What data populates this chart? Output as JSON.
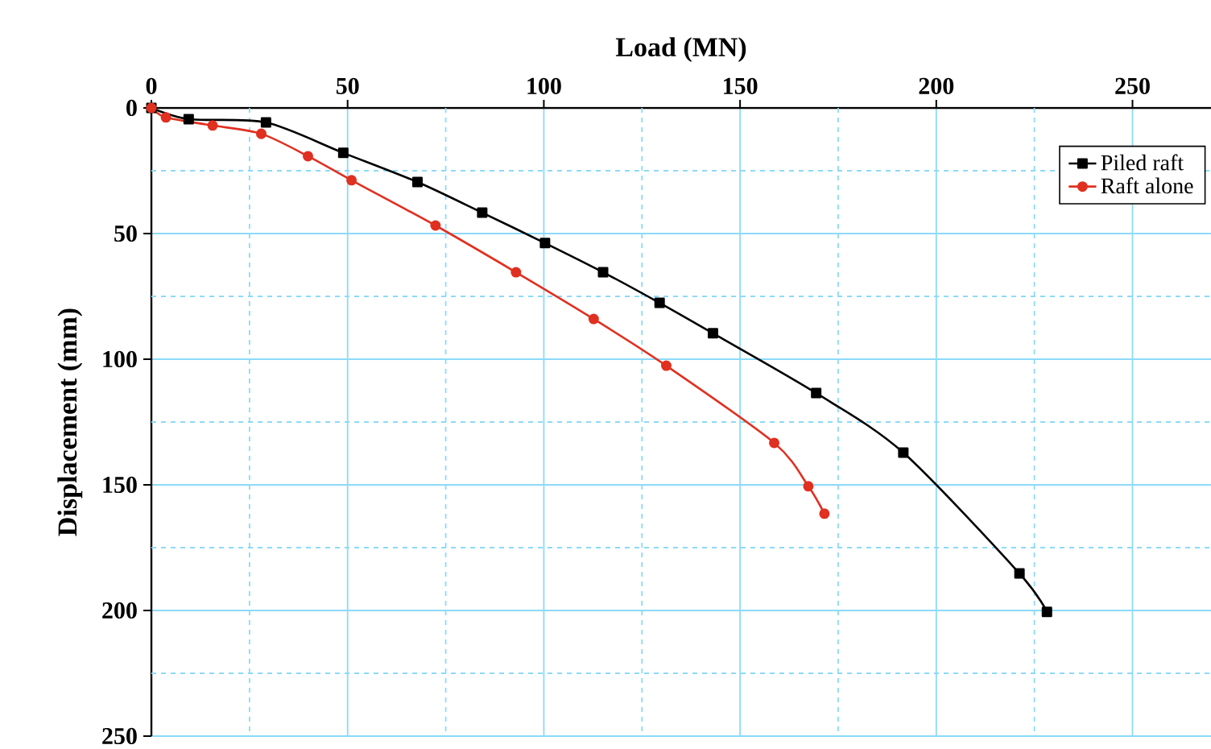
{
  "chart_data": {
    "type": "line",
    "xlabel": "Load (MN)",
    "ylabel": "Displacement (mm)",
    "xlim": [
      0,
      270
    ],
    "ylim": [
      250,
      0
    ],
    "xticks": [
      0,
      {
        "value": 25,
        "label": null
      },
      50,
      {
        "value": 75,
        "label": null
      },
      100,
      {
        "value": 125,
        "label": null
      },
      150,
      {
        "value": 175,
        "label": null
      },
      200,
      {
        "value": 225,
        "label": null
      },
      250
    ],
    "yticks": [
      0,
      {
        "value": 25,
        "label": null
      },
      50,
      {
        "value": 75,
        "label": null
      },
      100,
      {
        "value": 125,
        "label": null
      },
      150,
      {
        "value": 175,
        "label": null
      },
      200,
      {
        "value": 225,
        "label": null
      },
      250
    ],
    "grid": true,
    "legend": "top right",
    "line_style": "solid",
    "series": [
      {
        "name": "Piled raft",
        "color": "#000000",
        "marker": "square",
        "x": [
          0,
          9.5,
          29.2,
          48.9,
          67.8,
          84.3,
          100.3,
          115.1,
          129.5,
          143.1,
          169.4,
          191.6,
          221.2,
          228.2
        ],
        "values": [
          0,
          4.5,
          5.8,
          17.9,
          29.5,
          41.7,
          53.8,
          65.4,
          77.6,
          89.7,
          113.5,
          137.2,
          185.3,
          200.6
        ]
      },
      {
        "name": "Raft alone",
        "color": "#e03020",
        "marker": "circle",
        "x": [
          0,
          3.7,
          15.6,
          28,
          39.9,
          51,
          72.4,
          92.9,
          112.7,
          131.2,
          158.7,
          167.4,
          171.5
        ],
        "values": [
          0,
          3.8,
          7,
          10.3,
          19.2,
          28.8,
          46.8,
          65.4,
          84,
          102.6,
          133.3,
          150.6,
          161.5
        ]
      }
    ]
  }
}
